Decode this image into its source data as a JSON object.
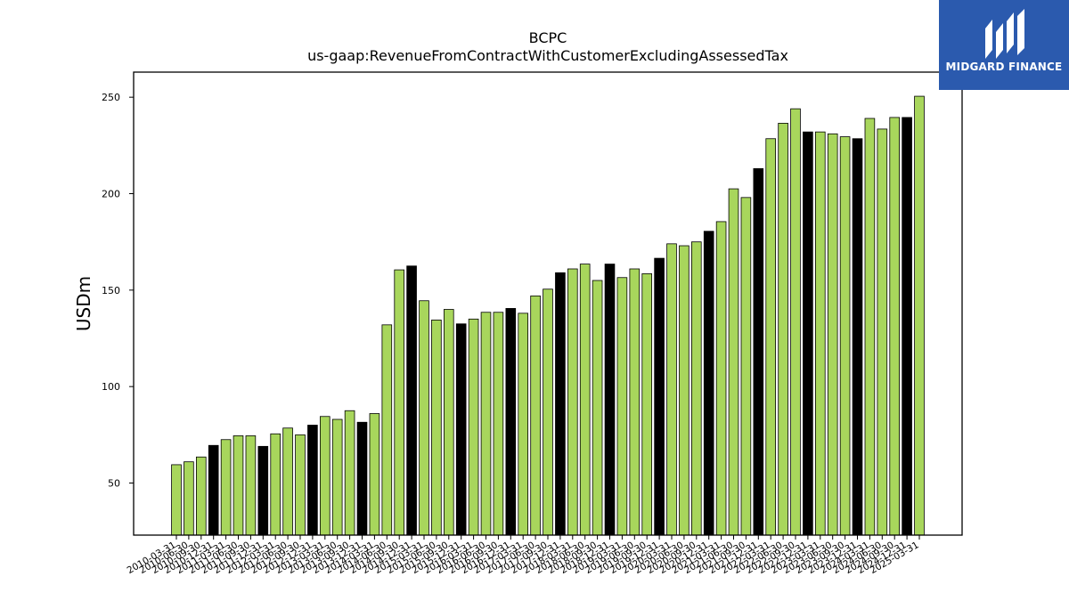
{
  "chart_data": {
    "type": "bar",
    "title": "BCPC",
    "subtitle": "us-gaap:RevenueFromContractWithCustomerExcludingAssessedTax",
    "xlabel": "",
    "ylabel": "USDm",
    "ylim": [
      23,
      263
    ],
    "yticks": [
      50,
      100,
      150,
      200,
      250
    ],
    "grid": false,
    "colors": {
      "quarter": "#a8d65c",
      "annual": "#000000",
      "edge": "#000000"
    },
    "categories": [
      "2010-03-31",
      "2010-06-30",
      "2010-09-30",
      "2010-12-31",
      "2011-03-31",
      "2011-06-30",
      "2011-09-30",
      "2011-12-31",
      "2012-03-31",
      "2012-06-30",
      "2012-09-30",
      "2012-12-31",
      "2013-03-31",
      "2013-06-30",
      "2013-09-30",
      "2013-12-31",
      "2014-03-31",
      "2014-06-30",
      "2014-09-30",
      "2014-12-31",
      "2015-03-31",
      "2015-06-30",
      "2015-09-30",
      "2015-12-31",
      "2016-03-31",
      "2016-06-30",
      "2016-09-30",
      "2016-12-31",
      "2017-03-31",
      "2017-06-30",
      "2017-09-30",
      "2017-12-31",
      "2018-03-31",
      "2018-06-30",
      "2018-09-30",
      "2018-12-31",
      "2019-03-31",
      "2019-06-30",
      "2019-09-30",
      "2019-12-31",
      "2020-03-31",
      "2020-06-30",
      "2020-09-30",
      "2020-12-31",
      "2021-03-31",
      "2021-06-30",
      "2021-09-30",
      "2021-12-31",
      "2022-03-31",
      "2022-06-30",
      "2022-09-30",
      "2022-12-31",
      "2023-03-31",
      "2023-06-30",
      "2023-09-30",
      "2023-12-31",
      "2024-03-31",
      "2024-06-30",
      "2024-09-30",
      "2024-12-31",
      "2025-03-31"
    ],
    "values": [
      59.5,
      61,
      63.5,
      69.5,
      72.5,
      74.5,
      74.5,
      69,
      75.5,
      78.5,
      75,
      80,
      84.5,
      83,
      87.5,
      81.5,
      86,
      132,
      160.5,
      162.5,
      144.5,
      134.5,
      140,
      132.5,
      135,
      138.5,
      138.5,
      140.5,
      138,
      147,
      150.5,
      159,
      161,
      163.5,
      155,
      163.5,
      156.5,
      161,
      158.5,
      166.5,
      174,
      173,
      175,
      180.5,
      185.5,
      202.5,
      198,
      213,
      228.5,
      236.5,
      244,
      232,
      232,
      231,
      229.5,
      228.5,
      239,
      233.5,
      239.5,
      239.5,
      250.5
    ],
    "annual": [
      false,
      false,
      false,
      true,
      false,
      false,
      false,
      true,
      false,
      false,
      false,
      true,
      false,
      false,
      false,
      true,
      false,
      false,
      false,
      true,
      false,
      false,
      false,
      true,
      false,
      false,
      false,
      true,
      false,
      false,
      false,
      true,
      false,
      false,
      false,
      true,
      false,
      false,
      false,
      true,
      false,
      false,
      false,
      true,
      false,
      false,
      false,
      true,
      false,
      false,
      false,
      true,
      false,
      false,
      false,
      true,
      false,
      false,
      false,
      true,
      false
    ]
  },
  "logo": {
    "text": "MIDGARD FINANCE"
  }
}
